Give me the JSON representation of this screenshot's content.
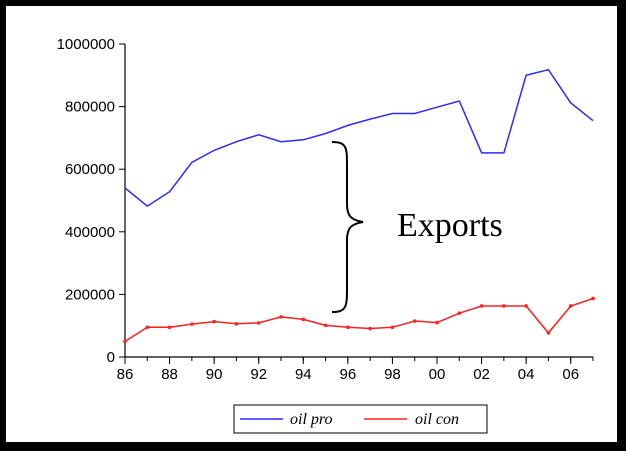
{
  "chart_data": {
    "type": "line",
    "x": [
      1986,
      1987,
      1988,
      1989,
      1990,
      1991,
      1992,
      1993,
      1994,
      1995,
      1996,
      1997,
      1998,
      1999,
      2000,
      2001,
      2002,
      2003,
      2004,
      2005,
      2006,
      2007
    ],
    "x_tick_labels": [
      "86",
      "88",
      "90",
      "92",
      "94",
      "96",
      "98",
      "00",
      "02",
      "04",
      "06"
    ],
    "y_tick_labels": [
      "0",
      "200000",
      "400000",
      "600000",
      "800000",
      "1000000"
    ],
    "ylim": [
      0,
      1000000
    ],
    "series": [
      {
        "name": "oil pro",
        "color": "#2b2bff",
        "values": [
          540000,
          482000,
          528000,
          622000,
          660000,
          688000,
          710000,
          688000,
          694000,
          714000,
          740000,
          760000,
          778000,
          778000,
          798000,
          818000,
          652000,
          652000,
          900000,
          918000,
          812000,
          755000
        ]
      },
      {
        "name": "oil con",
        "color": "#ff2020",
        "values": [
          50000,
          95000,
          95000,
          105000,
          113000,
          106000,
          109000,
          128000,
          120000,
          101000,
          95000,
          91000,
          95000,
          115000,
          110000,
          140000,
          163000,
          163000,
          163000,
          77000,
          163000,
          187000
        ]
      }
    ],
    "annotations": [
      {
        "text": "Exports"
      }
    ],
    "grid": false,
    "legend": "bottom-center"
  }
}
